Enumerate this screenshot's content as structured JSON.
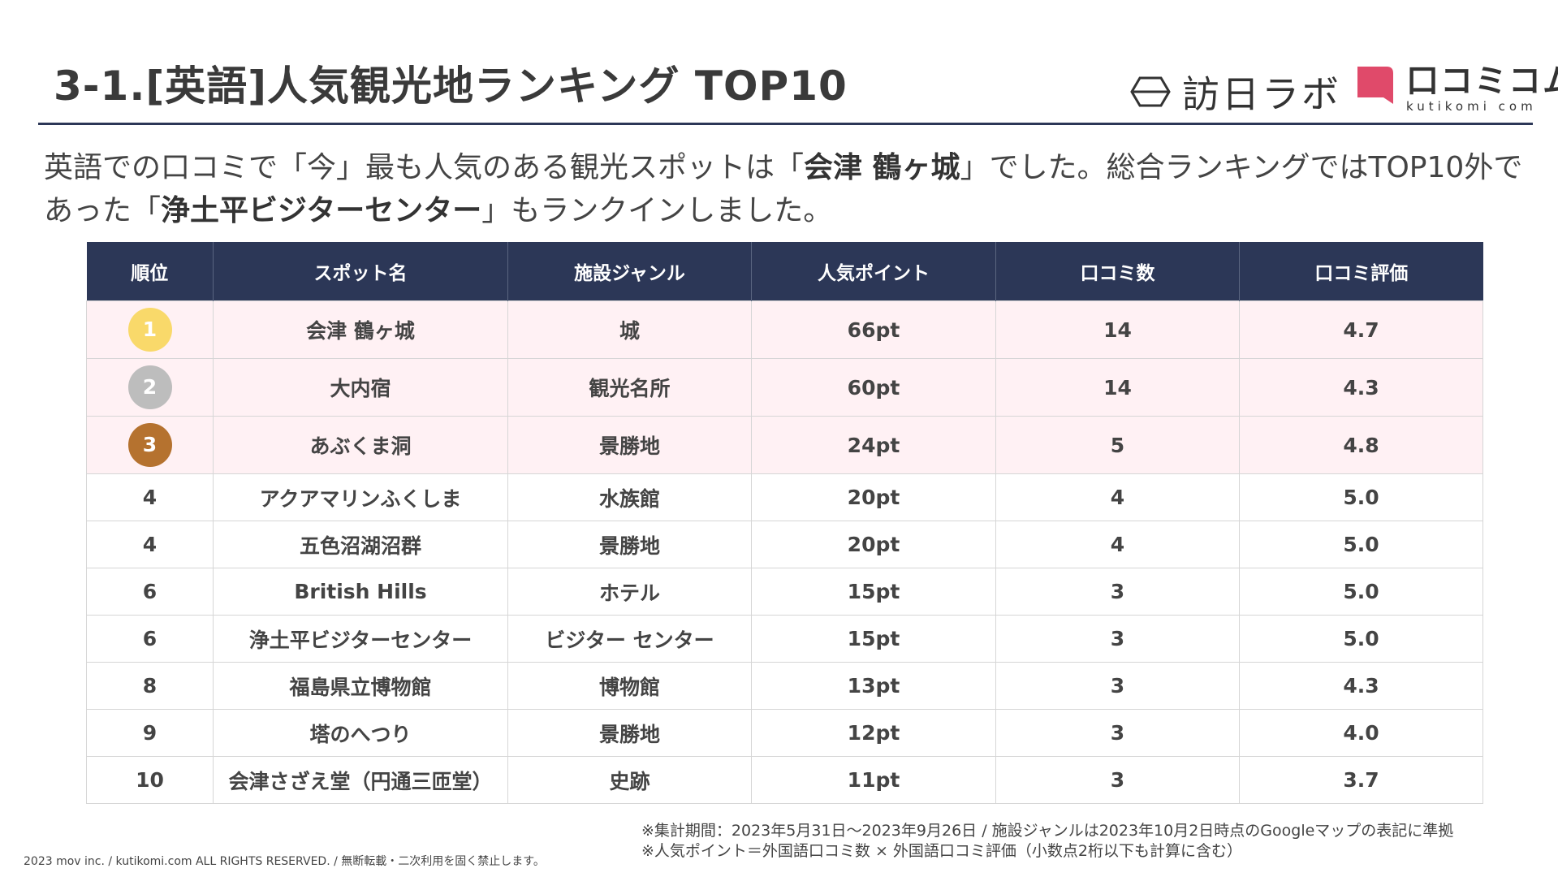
{
  "header": {
    "title": "3-1.[英語]人気観光地ランキング TOP10",
    "logo_honichi": "訪日ラボ",
    "logo_kutikomi": "口コミコム",
    "logo_kutikomi_sub": "kutikomi com"
  },
  "intro": {
    "l1_a": "英語での口コミで「今」最も人気のある観光スポットは「",
    "l1_b": "会津 鶴ヶ城",
    "l1_c": "」でした。総合ランキングではTOP10外で",
    "l2_a": "あった「",
    "l2_b": "浄土平ビジターセンター",
    "l2_c": "」もランクインしました。"
  },
  "table": {
    "headers": [
      "順位",
      "スポット名",
      "施設ジャンル",
      "人気ポイント",
      "口コミ数",
      "口コミ評価"
    ],
    "rows": [
      {
        "rank": "1",
        "name": "会津 鶴ヶ城",
        "genre": "城",
        "points": "66pt",
        "reviews": "14",
        "rating": "4.7"
      },
      {
        "rank": "2",
        "name": "大内宿",
        "genre": "観光名所",
        "points": "60pt",
        "reviews": "14",
        "rating": "4.3"
      },
      {
        "rank": "3",
        "name": "あぶくま洞",
        "genre": "景勝地",
        "points": "24pt",
        "reviews": "5",
        "rating": "4.8"
      },
      {
        "rank": "4",
        "name": "アクアマリンふくしま",
        "genre": "水族館",
        "points": "20pt",
        "reviews": "4",
        "rating": "5.0"
      },
      {
        "rank": "4",
        "name": "五色沼湖沼群",
        "genre": "景勝地",
        "points": "20pt",
        "reviews": "4",
        "rating": "5.0"
      },
      {
        "rank": "6",
        "name": "British Hills",
        "genre": "ホテル",
        "points": "15pt",
        "reviews": "3",
        "rating": "5.0"
      },
      {
        "rank": "6",
        "name": "浄土平ビジターセンター",
        "genre": "ビジター センター",
        "points": "15pt",
        "reviews": "3",
        "rating": "5.0"
      },
      {
        "rank": "8",
        "name": "福島県立博物館",
        "genre": "博物館",
        "points": "13pt",
        "reviews": "3",
        "rating": "4.3"
      },
      {
        "rank": "9",
        "name": "塔のへつり",
        "genre": "景勝地",
        "points": "12pt",
        "reviews": "3",
        "rating": "4.0"
      },
      {
        "rank": "10",
        "name": "会津さざえ堂（円通三匝堂）",
        "genre": "史跡",
        "points": "11pt",
        "reviews": "3",
        "rating": "3.7"
      }
    ]
  },
  "medal_colors": {
    "gold": "#f9d96a",
    "silver": "#bdbdbd",
    "bronze": "#b5722f"
  },
  "brand_colors": {
    "navy": "#2c3757",
    "pink_row": "#fff1f4",
    "kutikomi_red": "#e04a6a"
  },
  "notes": {
    "line1": "※集計期間：2023年5月31日〜2023年9月26日 / 施設ジャンルは2023年10月2日時点のGoogleマップの表記に準拠",
    "line2": "※人気ポイント＝外国語口コミ数 × 外国語口コミ評価（小数点2桁以下も計算に含む）"
  },
  "footer": {
    "copyright": "2023 mov inc. / kutikomi.com ALL RIGHTS RESERVED. / 無断転載・二次利用を固く禁止します。"
  }
}
